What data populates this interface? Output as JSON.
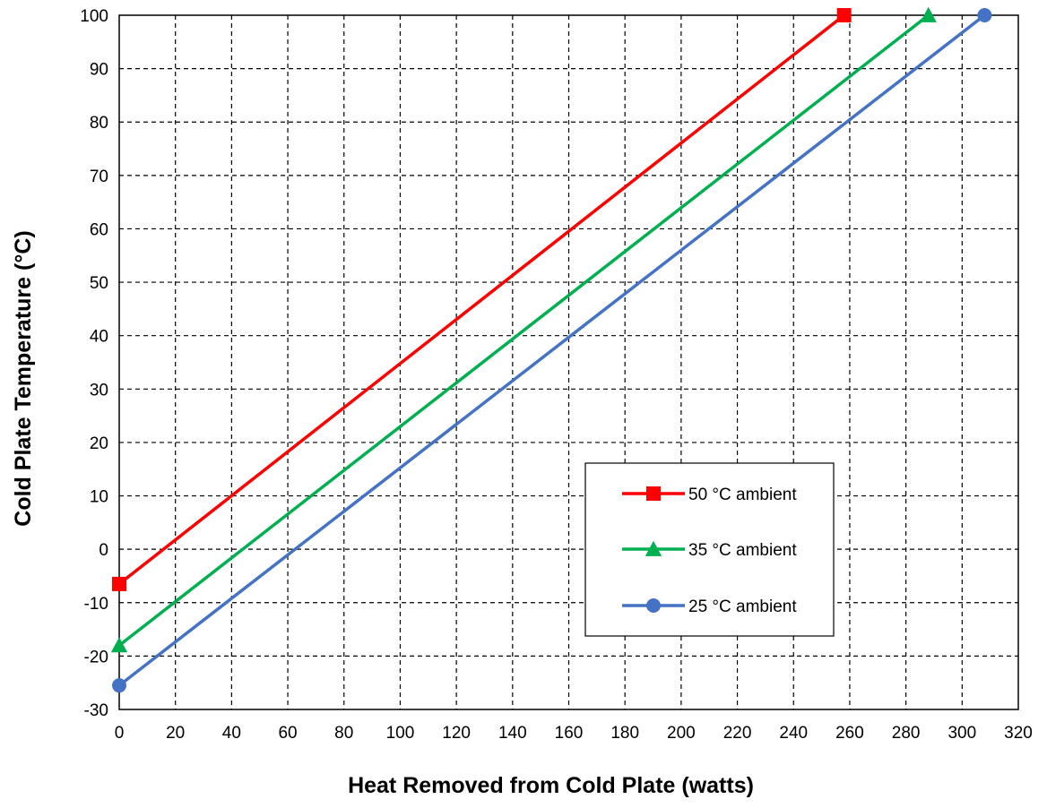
{
  "chart_data": {
    "type": "line",
    "title": "",
    "xlabel": "Heat Removed from Cold Plate (watts)",
    "ylabel": "Cold Plate Temperature (°C)",
    "xlim": [
      0,
      320
    ],
    "ylim": [
      -30,
      100
    ],
    "xticks": [
      0,
      20,
      40,
      60,
      80,
      100,
      120,
      140,
      160,
      180,
      200,
      220,
      240,
      260,
      280,
      300,
      320
    ],
    "yticks": [
      -30,
      -20,
      -10,
      0,
      10,
      20,
      30,
      40,
      50,
      60,
      70,
      80,
      90,
      100
    ],
    "grid": true,
    "legend_position": "center-right",
    "series": [
      {
        "name": "50 °C ambient",
        "color": "#ff0000",
        "marker": "square",
        "x": [
          0,
          258
        ],
        "y": [
          -6.5,
          100
        ]
      },
      {
        "name": "35 °C ambient",
        "color": "#00b050",
        "marker": "triangle",
        "x": [
          0,
          288
        ],
        "y": [
          -18,
          100
        ]
      },
      {
        "name": "25 °C ambient",
        "color": "#4472c4",
        "marker": "circle",
        "x": [
          0,
          308
        ],
        "y": [
          -25.5,
          100
        ]
      }
    ]
  }
}
